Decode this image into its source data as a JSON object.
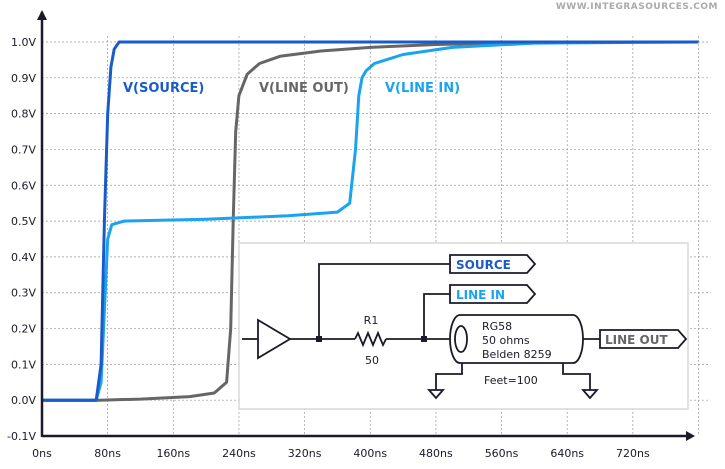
{
  "watermark": "WWW.INTEGRASOURCES.COM",
  "chart_data": {
    "type": "line",
    "xlim": [
      0,
      800
    ],
    "ylim": [
      -0.1,
      1.0
    ],
    "grid": true,
    "x_ticks": [
      0,
      80,
      160,
      240,
      320,
      400,
      480,
      560,
      640,
      720
    ],
    "x_tick_labels": [
      "0ns",
      "80ns",
      "160ns",
      "240ns",
      "320ns",
      "400ns",
      "480ns",
      "560ns",
      "640ns",
      "720ns"
    ],
    "y_ticks": [
      1.0,
      0.9,
      0.8,
      0.7,
      0.6,
      0.5,
      0.4,
      0.3,
      0.2,
      0.1,
      0.0,
      -0.1
    ],
    "y_tick_labels": [
      "1.0V",
      "0.9V",
      "0.8V",
      "0.7V",
      "0.6V",
      "0.5V",
      "0.4V",
      "0.3V",
      "0.2V",
      "0.1V",
      "0.0V",
      "-0.1V"
    ],
    "series": [
      {
        "name": "V(LINE OUT)",
        "color": "#666666",
        "x": [
          0,
          70,
          120,
          180,
          210,
          225,
          230,
          233,
          236,
          240,
          250,
          265,
          290,
          340,
          400,
          480,
          560,
          640,
          800
        ],
        "y": [
          0,
          0,
          0.003,
          0.01,
          0.02,
          0.05,
          0.2,
          0.5,
          0.75,
          0.85,
          0.91,
          0.94,
          0.96,
          0.975,
          0.985,
          0.993,
          0.997,
          1.0,
          1.0
        ]
      },
      {
        "name": "V(LINE IN)",
        "color": "#1aa3ef",
        "x": [
          0,
          66,
          72,
          76,
          80,
          85,
          100,
          200,
          300,
          360,
          375,
          382,
          386,
          390,
          395,
          405,
          440,
          500,
          600,
          800
        ],
        "y": [
          0,
          0,
          0.05,
          0.25,
          0.45,
          0.49,
          0.5,
          0.505,
          0.515,
          0.525,
          0.55,
          0.7,
          0.85,
          0.9,
          0.92,
          0.94,
          0.965,
          0.985,
          0.997,
          1.0
        ]
      },
      {
        "name": "V(SOURCE)",
        "color": "#1a5bc9",
        "x": [
          0,
          66,
          72,
          76,
          80,
          84,
          88,
          94,
          100,
          800
        ],
        "y": [
          0,
          0,
          0.1,
          0.5,
          0.8,
          0.93,
          0.98,
          1.0,
          1.0,
          1.0
        ]
      }
    ],
    "annotations": [
      "V(SOURCE)",
      "V(LINE OUT)",
      "V(LINE IN)"
    ]
  },
  "schematic": {
    "labels": {
      "source": "SOURCE",
      "line_in": "LINE IN",
      "line_out": "LINE OUT"
    },
    "resistor": {
      "name": "R1",
      "value": "50"
    },
    "cable": {
      "line1": "RG58",
      "line2": "50 ohms",
      "line3": "Belden 8259",
      "length": "Feet=100"
    }
  }
}
